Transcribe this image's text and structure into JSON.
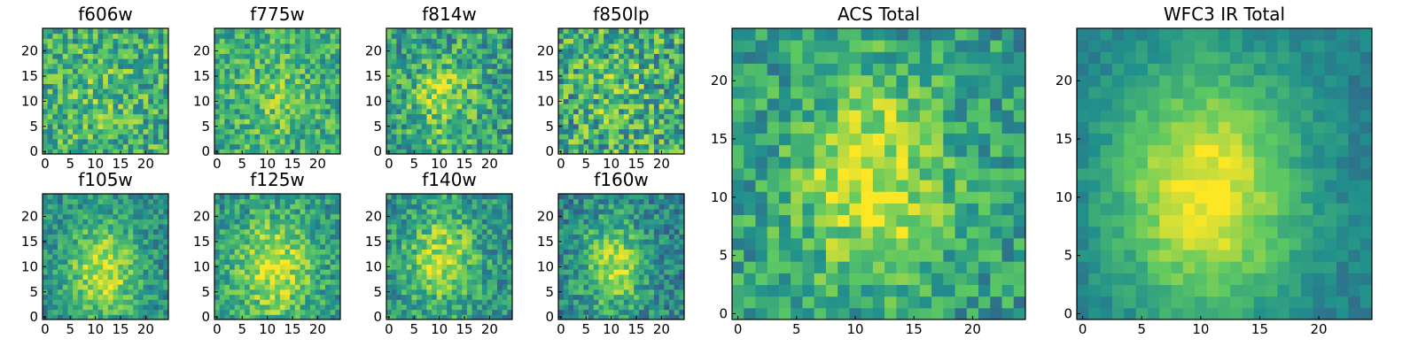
{
  "figure": {
    "colormap": "viridis",
    "colormap_stops": [
      "#440154",
      "#3b528b",
      "#21918c",
      "#5ec962",
      "#fde725"
    ],
    "grid": false,
    "legend": "none"
  },
  "chart_data": [
    {
      "id": "f606w",
      "type": "heatmap",
      "title": "f606w",
      "xlim": [
        0,
        25
      ],
      "ylim": [
        0,
        25
      ],
      "xticks": [
        "0",
        "5",
        "10",
        "15",
        "20"
      ],
      "yticks": [
        "0",
        "5",
        "10",
        "15",
        "20"
      ],
      "center": [
        12,
        11
      ],
      "radius": 4.5,
      "peak": 0.72,
      "background": 0.62,
      "noise": 0.25
    },
    {
      "id": "f775w",
      "type": "heatmap",
      "title": "f775w",
      "xlim": [
        0,
        25
      ],
      "ylim": [
        0,
        25
      ],
      "xticks": [
        "0",
        "5",
        "10",
        "15",
        "20"
      ],
      "yticks": [
        "0",
        "5",
        "10",
        "15",
        "20"
      ],
      "center": [
        12,
        11
      ],
      "radius": 4.5,
      "peak": 0.75,
      "background": 0.62,
      "noise": 0.22
    },
    {
      "id": "f814w",
      "type": "heatmap",
      "title": "f814w",
      "xlim": [
        0,
        25
      ],
      "ylim": [
        0,
        25
      ],
      "xticks": [
        "0",
        "5",
        "10",
        "15",
        "20"
      ],
      "yticks": [
        "0",
        "5",
        "10",
        "15",
        "20"
      ],
      "center": [
        11,
        11
      ],
      "radius": 4.5,
      "peak": 0.82,
      "background": 0.55,
      "noise": 0.25
    },
    {
      "id": "f850lp",
      "type": "heatmap",
      "title": "f850lp",
      "xlim": [
        0,
        25
      ],
      "ylim": [
        0,
        25
      ],
      "xticks": [
        "0",
        "5",
        "10",
        "15",
        "20"
      ],
      "yticks": [
        "0",
        "5",
        "10",
        "15",
        "20"
      ],
      "center": [
        12,
        12
      ],
      "radius": 5,
      "peak": 0.7,
      "background": 0.6,
      "noise": 0.3
    },
    {
      "id": "f105w",
      "type": "heatmap",
      "title": "f105w",
      "xlim": [
        0,
        25
      ],
      "ylim": [
        0,
        25
      ],
      "xticks": [
        "0",
        "5",
        "10",
        "15",
        "20"
      ],
      "yticks": [
        "0",
        "5",
        "10",
        "15",
        "20"
      ],
      "center": [
        12,
        10
      ],
      "radius": 5,
      "peak": 0.92,
      "background": 0.48,
      "noise": 0.18
    },
    {
      "id": "f125w",
      "type": "heatmap",
      "title": "f125w",
      "xlim": [
        0,
        25
      ],
      "ylim": [
        0,
        25
      ],
      "xticks": [
        "0",
        "5",
        "10",
        "15",
        "20"
      ],
      "yticks": [
        "0",
        "5",
        "10",
        "15",
        "20"
      ],
      "center": [
        12,
        10
      ],
      "radius": 5.5,
      "peak": 0.92,
      "background": 0.52,
      "noise": 0.2
    },
    {
      "id": "f140w",
      "type": "heatmap",
      "title": "f140w",
      "xlim": [
        0,
        25
      ],
      "ylim": [
        0,
        25
      ],
      "xticks": [
        "0",
        "5",
        "10",
        "15",
        "20"
      ],
      "yticks": [
        "0",
        "5",
        "10",
        "15",
        "20"
      ],
      "center": [
        11,
        12
      ],
      "radius": 5,
      "peak": 0.88,
      "background": 0.5,
      "noise": 0.2
    },
    {
      "id": "f160w",
      "type": "heatmap",
      "title": "f160w",
      "xlim": [
        0,
        25
      ],
      "ylim": [
        0,
        25
      ],
      "xticks": [
        "0",
        "5",
        "10",
        "15",
        "20"
      ],
      "yticks": [
        "0",
        "5",
        "10",
        "15",
        "20"
      ],
      "center": [
        11,
        11
      ],
      "radius": 4.5,
      "peak": 0.88,
      "background": 0.45,
      "noise": 0.2
    },
    {
      "id": "acs_total",
      "type": "heatmap",
      "title": "ACS Total",
      "xlim": [
        0,
        25
      ],
      "ylim": [
        0,
        25
      ],
      "xticks": [
        "0",
        "5",
        "10",
        "15",
        "20"
      ],
      "yticks": [
        "0",
        "5",
        "10",
        "15",
        "20"
      ],
      "center": [
        12,
        12
      ],
      "radius": 4.5,
      "peak": 0.95,
      "background": 0.55,
      "noise": 0.2
    },
    {
      "id": "wfc3_ir_total",
      "type": "heatmap",
      "title": "WFC3 IR Total",
      "xlim": [
        0,
        25
      ],
      "ylim": [
        0,
        25
      ],
      "xticks": [
        "0",
        "5",
        "10",
        "15",
        "20"
      ],
      "yticks": [
        "0",
        "5",
        "10",
        "15",
        "20"
      ],
      "center": [
        11,
        11
      ],
      "radius": 5.5,
      "peak": 1.0,
      "background": 0.42,
      "noise": 0.08
    }
  ]
}
